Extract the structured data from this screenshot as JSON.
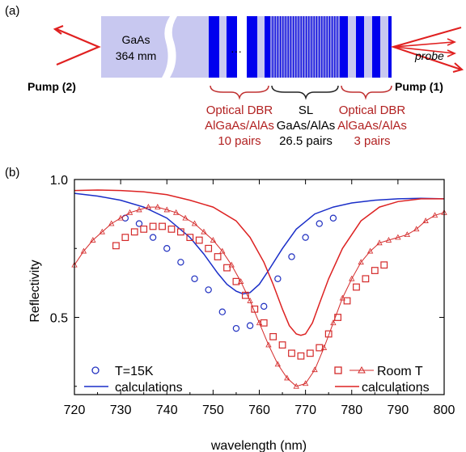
{
  "panel_a": {
    "label": "(a)",
    "substrate_label_1": "GaAs",
    "substrate_label_2": "364 mm",
    "ellipsis": "···",
    "pump_left": "Pump (2)",
    "pump_right": "Pump (1)",
    "probe": "probe",
    "groups": [
      {
        "lines": [
          "Optical DBR",
          "AlGaAs/AlAs",
          "10 pairs"
        ],
        "color": "#b22222"
      },
      {
        "lines": [
          "SL",
          "GaAs/AlAs",
          "26.5 pairs"
        ],
        "color": "#000000"
      },
      {
        "lines": [
          "Optical DBR",
          "AlGaAs/AlAs",
          "3 pairs"
        ],
        "color": "#b22222"
      }
    ],
    "colors": {
      "substrate": "#c8c8f0",
      "dbr_dark": "#0000ee",
      "sl": "#8a8ae8",
      "arrow": "#e02020"
    }
  },
  "panel_b": {
    "label": "(b)",
    "legend": {
      "t15k": "T=15K",
      "calc_blue": "calculations",
      "roomt": "Room T",
      "calc_red": "calculations"
    }
  },
  "chart_data": {
    "type": "scatter",
    "xlabel": "wavelength (nm)",
    "ylabel": "Reflectivity",
    "xlim": [
      720,
      800
    ],
    "ylim": [
      0.22,
      1.0
    ],
    "xticks": [
      720,
      730,
      740,
      750,
      760,
      770,
      780,
      790,
      800
    ],
    "yticks": [
      0.5,
      1.0
    ],
    "ytick_labels": [
      "0.5",
      "1.0"
    ],
    "series": [
      {
        "name": "T=15K",
        "marker": "circle",
        "color": "#2030c0",
        "x": [
          731,
          734,
          737,
          740,
          743,
          746,
          749,
          752,
          755,
          758,
          761,
          764,
          767,
          770,
          773,
          776
        ],
        "y": [
          0.86,
          0.84,
          0.79,
          0.75,
          0.7,
          0.64,
          0.6,
          0.52,
          0.46,
          0.47,
          0.54,
          0.64,
          0.72,
          0.79,
          0.84,
          0.86
        ]
      },
      {
        "name": "calculations",
        "style": "line",
        "color": "#1a2ec8",
        "x": [
          720,
          725,
          730,
          735,
          740,
          745,
          748,
          751,
          753,
          755,
          756.5,
          758,
          760,
          762,
          765,
          768,
          772,
          776,
          780,
          785,
          790,
          795,
          800
        ],
        "y": [
          0.95,
          0.94,
          0.925,
          0.9,
          0.86,
          0.79,
          0.73,
          0.66,
          0.62,
          0.595,
          0.585,
          0.59,
          0.62,
          0.67,
          0.75,
          0.82,
          0.875,
          0.9,
          0.915,
          0.925,
          0.93,
          0.932,
          0.93
        ]
      },
      {
        "name": "Room T",
        "marker": "square",
        "color": "#d42a2a",
        "x": [
          729,
          731,
          733,
          735,
          737,
          739,
          741,
          743,
          745,
          747,
          749,
          751,
          753,
          755,
          757,
          759,
          761,
          763,
          765,
          767,
          769,
          771,
          773,
          775,
          777,
          779,
          781,
          783,
          785,
          787
        ],
        "y": [
          0.76,
          0.79,
          0.81,
          0.82,
          0.83,
          0.83,
          0.82,
          0.81,
          0.79,
          0.78,
          0.75,
          0.72,
          0.68,
          0.63,
          0.58,
          0.53,
          0.48,
          0.43,
          0.4,
          0.37,
          0.36,
          0.37,
          0.39,
          0.44,
          0.5,
          0.56,
          0.61,
          0.64,
          0.67,
          0.69
        ]
      },
      {
        "name": "Room T",
        "marker": "triangle",
        "style": "line",
        "color": "#d42a2a",
        "x": [
          720,
          722,
          724,
          726,
          728,
          730,
          732,
          734,
          736,
          738,
          740,
          742,
          744,
          746,
          748,
          750,
          752,
          754,
          756,
          758,
          760,
          762,
          764,
          766,
          768,
          770,
          772,
          774,
          776,
          778,
          780,
          782,
          784,
          786,
          788,
          790,
          792,
          794,
          796,
          798,
          800
        ],
        "y": [
          0.69,
          0.74,
          0.78,
          0.81,
          0.84,
          0.86,
          0.88,
          0.89,
          0.9,
          0.9,
          0.89,
          0.88,
          0.86,
          0.84,
          0.81,
          0.78,
          0.74,
          0.69,
          0.63,
          0.56,
          0.48,
          0.4,
          0.33,
          0.28,
          0.25,
          0.26,
          0.31,
          0.39,
          0.48,
          0.57,
          0.64,
          0.7,
          0.74,
          0.77,
          0.78,
          0.79,
          0.8,
          0.82,
          0.85,
          0.87,
          0.88
        ]
      },
      {
        "name": "calculations",
        "style": "line",
        "color": "#dd2222",
        "x": [
          720,
          725,
          730,
          735,
          740,
          745,
          750,
          755,
          758,
          761,
          763,
          765,
          766.5,
          768,
          769,
          770,
          771.5,
          773,
          775,
          778,
          782,
          786,
          790,
          795,
          800
        ],
        "y": [
          0.96,
          0.962,
          0.96,
          0.955,
          0.945,
          0.925,
          0.9,
          0.85,
          0.79,
          0.7,
          0.62,
          0.53,
          0.47,
          0.44,
          0.435,
          0.44,
          0.48,
          0.55,
          0.64,
          0.75,
          0.85,
          0.9,
          0.92,
          0.93,
          0.93
        ]
      }
    ]
  }
}
